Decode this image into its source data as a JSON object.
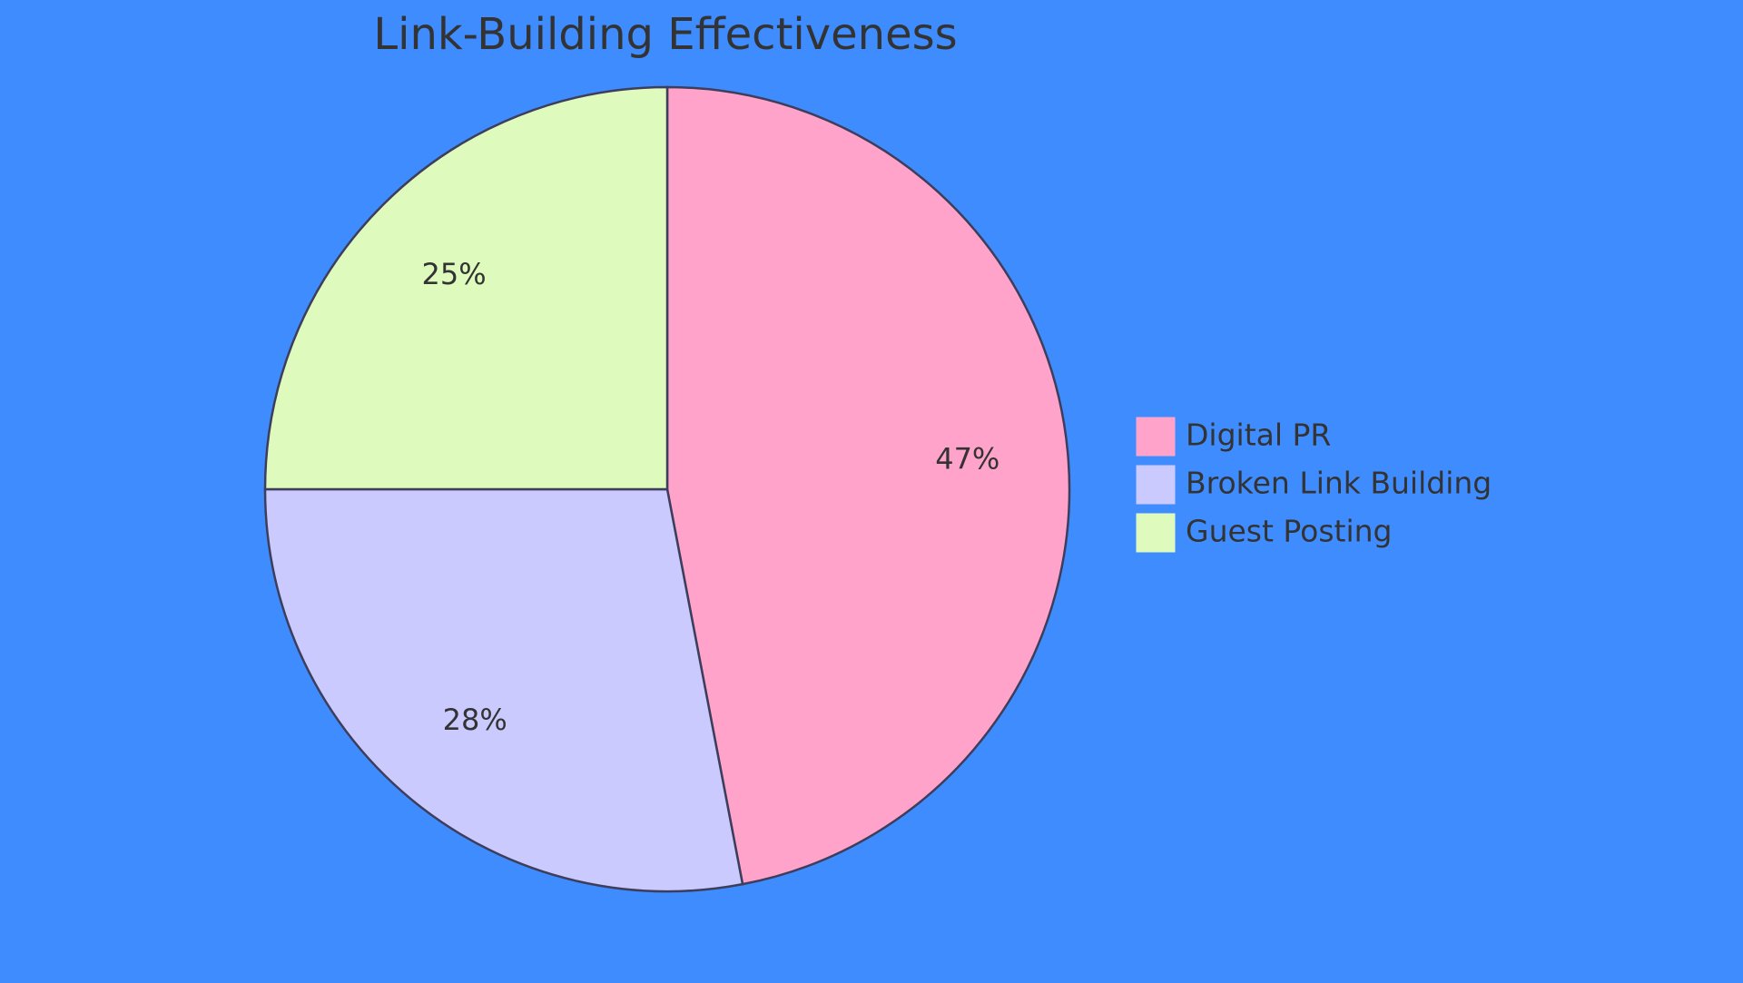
{
  "chart_data": {
    "type": "pie",
    "title": "Link-Building Effectiveness",
    "categories": [
      "Digital PR",
      "Broken Link Building",
      "Guest Posting"
    ],
    "values": [
      47,
      28,
      25
    ],
    "value_labels": [
      "47%",
      "28%",
      "25%"
    ],
    "colors": [
      "#ffa3ca",
      "#cacaff",
      "#defbbd"
    ]
  }
}
